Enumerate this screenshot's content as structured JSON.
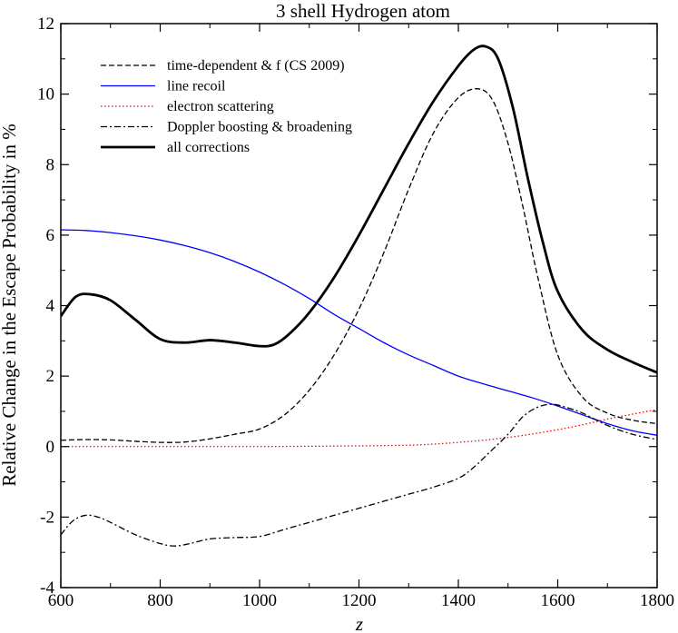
{
  "chart_data": {
    "type": "line",
    "title": "3 shell Hydrogen atom",
    "xlabel": "z",
    "ylabel": "Relative Change in the Escape Probability in %",
    "xlim": [
      600,
      1800
    ],
    "ylim": [
      -4,
      12
    ],
    "xticks": [
      600,
      800,
      1000,
      1200,
      1400,
      1600,
      1800
    ],
    "yticks": [
      -4,
      -2,
      0,
      2,
      4,
      6,
      8,
      10,
      12
    ],
    "xtick_labels": [
      "600",
      "800",
      "1000",
      "1200",
      "1400",
      "1600",
      "1800"
    ],
    "ytick_labels": [
      "-4",
      "-2",
      "0",
      "2",
      "4",
      "6",
      "8",
      "10",
      "12"
    ],
    "grid": false,
    "legend_position": "top-left",
    "series": [
      {
        "name": "time-dependent & f (CS 2009)",
        "style": "dashed",
        "color": "#000000",
        "x": [
          600,
          650,
          700,
          750,
          800,
          850,
          900,
          950,
          1000,
          1050,
          1100,
          1150,
          1200,
          1250,
          1300,
          1350,
          1400,
          1440,
          1470,
          1500,
          1530,
          1560,
          1600,
          1650,
          1700,
          1750,
          1800
        ],
        "y": [
          0.18,
          0.2,
          0.19,
          0.15,
          0.12,
          0.13,
          0.22,
          0.35,
          0.5,
          0.9,
          1.6,
          2.6,
          3.9,
          5.5,
          7.3,
          8.9,
          9.9,
          10.15,
          9.8,
          8.6,
          6.8,
          4.8,
          2.6,
          1.4,
          0.95,
          0.75,
          0.65
        ]
      },
      {
        "name": "line recoil",
        "style": "solid",
        "color": "#0000ff",
        "x": [
          600,
          650,
          700,
          750,
          800,
          850,
          900,
          950,
          1000,
          1050,
          1100,
          1150,
          1200,
          1250,
          1300,
          1350,
          1400,
          1450,
          1500,
          1550,
          1600,
          1650,
          1700,
          1750,
          1800
        ],
        "y": [
          6.15,
          6.13,
          6.07,
          5.98,
          5.86,
          5.7,
          5.5,
          5.25,
          4.95,
          4.6,
          4.2,
          3.75,
          3.35,
          2.95,
          2.6,
          2.3,
          2.0,
          1.78,
          1.58,
          1.38,
          1.15,
          0.9,
          0.65,
          0.45,
          0.32
        ]
      },
      {
        "name": "electron scattering",
        "style": "dotted",
        "color": "#ff0000",
        "x": [
          600,
          700,
          800,
          900,
          1000,
          1100,
          1200,
          1300,
          1350,
          1400,
          1450,
          1500,
          1550,
          1600,
          1650,
          1700,
          1750,
          1800
        ],
        "y": [
          0.0,
          0.0,
          0.0,
          0.0,
          0.0,
          0.01,
          0.02,
          0.04,
          0.07,
          0.12,
          0.18,
          0.26,
          0.36,
          0.48,
          0.62,
          0.78,
          0.92,
          1.05
        ]
      },
      {
        "name": "Doppler boosting & broadening",
        "style": "dashdot",
        "color": "#000000",
        "x": [
          600,
          625,
          650,
          675,
          700,
          750,
          800,
          830,
          860,
          900,
          950,
          1000,
          1050,
          1100,
          1150,
          1200,
          1250,
          1300,
          1350,
          1400,
          1430,
          1460,
          1500,
          1530,
          1560,
          1590,
          1620,
          1650,
          1700,
          1750,
          1800
        ],
        "y": [
          -2.5,
          -2.1,
          -1.95,
          -2.0,
          -2.15,
          -2.5,
          -2.75,
          -2.82,
          -2.75,
          -2.62,
          -2.58,
          -2.55,
          -2.35,
          -2.15,
          -1.95,
          -1.75,
          -1.55,
          -1.35,
          -1.15,
          -0.9,
          -0.6,
          -0.2,
          0.35,
          0.85,
          1.12,
          1.2,
          1.1,
          0.95,
          0.6,
          0.35,
          0.2
        ]
      },
      {
        "name": "all corrections",
        "style": "solid-thick",
        "color": "#000000",
        "x": [
          600,
          630,
          660,
          700,
          750,
          800,
          850,
          900,
          950,
          1000,
          1030,
          1060,
          1100,
          1150,
          1200,
          1250,
          1300,
          1350,
          1400,
          1430,
          1455,
          1480,
          1510,
          1540,
          1570,
          1600,
          1650,
          1700,
          1750,
          1800
        ],
        "y": [
          3.7,
          4.25,
          4.32,
          4.15,
          3.6,
          3.05,
          2.95,
          3.02,
          2.95,
          2.85,
          2.9,
          3.2,
          3.8,
          4.8,
          6.0,
          7.3,
          8.6,
          9.8,
          10.8,
          11.25,
          11.35,
          11.0,
          9.6,
          7.6,
          5.8,
          4.4,
          3.3,
          2.75,
          2.4,
          2.1
        ]
      }
    ]
  }
}
